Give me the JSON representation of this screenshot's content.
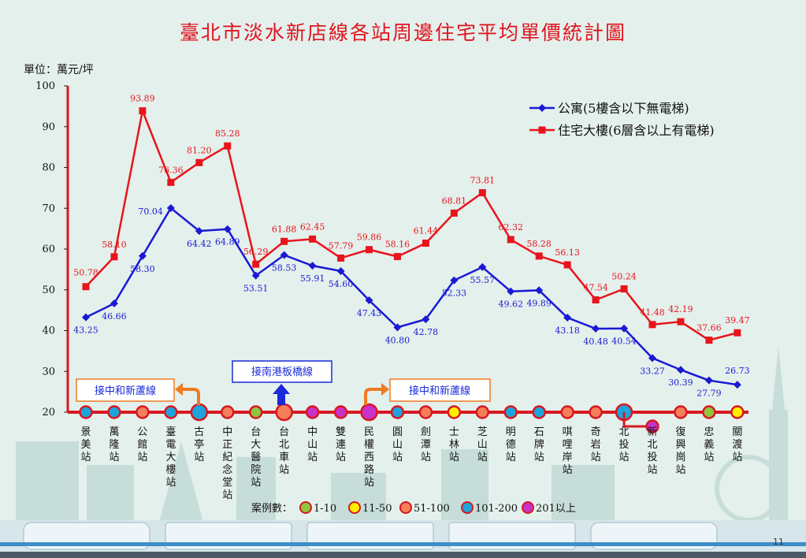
{
  "title": "臺北市淡水新店線各站周邊住宅平均單價統計圖",
  "unit_label": "單位：萬元/坪",
  "page_number": "11",
  "colors": {
    "apartment": "#1a1ad4",
    "building": "#e8141c",
    "axis": "#d81820",
    "annotation_orange": "#f07a20",
    "annotation_blue": "#1a2ad8",
    "bin_1_10": "#8dc63f",
    "bin_11_50": "#ffee00",
    "bin_51_100": "#f47f5a",
    "bin_101_200": "#1ea4dc",
    "bin_201_plus": "#c832c8"
  },
  "annotations": {
    "left_connect": "接中和新蘆線",
    "south_connect": "接南港板橋線",
    "right_connect": "接中和新蘆線"
  },
  "legend_case_count": {
    "label": "案例數：",
    "items": [
      {
        "key": "bin_1_10",
        "text": "1-10"
      },
      {
        "key": "bin_11_50",
        "text": "11-50"
      },
      {
        "key": "bin_51_100",
        "text": "51-100"
      },
      {
        "key": "bin_101_200",
        "text": "101-200"
      },
      {
        "key": "bin_201_plus",
        "text": "201以上"
      }
    ]
  },
  "stations": [
    {
      "name": "景美站",
      "dot": "bin_101_200"
    },
    {
      "name": "萬隆站",
      "dot": "bin_101_200"
    },
    {
      "name": "公館站",
      "dot": "bin_51_100"
    },
    {
      "name": "臺電大樓站",
      "dot": "bin_101_200"
    },
    {
      "name": "古亭站",
      "dot": "bin_101_200"
    },
    {
      "name": "中正紀念堂站",
      "dot": "bin_51_100"
    },
    {
      "name": "台大醫院站",
      "dot": "bin_1_10"
    },
    {
      "name": "台北車站",
      "dot": "bin_51_100"
    },
    {
      "name": "中山站",
      "dot": "bin_201_plus"
    },
    {
      "name": "雙連站",
      "dot": "bin_201_plus"
    },
    {
      "name": "民權西路站",
      "dot": "bin_201_plus"
    },
    {
      "name": "圓山站",
      "dot": "bin_101_200"
    },
    {
      "name": "劍潭站",
      "dot": "bin_51_100"
    },
    {
      "name": "士林站",
      "dot": "bin_11_50"
    },
    {
      "name": "芝山站",
      "dot": "bin_51_100"
    },
    {
      "name": "明德站",
      "dot": "bin_101_200"
    },
    {
      "name": "石牌站",
      "dot": "bin_101_200"
    },
    {
      "name": "唭哩岸站",
      "dot": "bin_51_100"
    },
    {
      "name": "奇岩站",
      "dot": "bin_51_100"
    },
    {
      "name": "北投站",
      "dot": "bin_101_200"
    },
    {
      "name": "新北投站",
      "dot": "bin_201_plus"
    },
    {
      "name": "復興崗站",
      "dot": "bin_51_100"
    },
    {
      "name": "忠義站",
      "dot": "bin_1_10"
    },
    {
      "name": "關渡站",
      "dot": "bin_11_50"
    }
  ],
  "chart_data": {
    "type": "line",
    "categories": [
      "景美站",
      "萬隆站",
      "公館站",
      "臺電大樓站",
      "古亭站",
      "中正紀念堂站",
      "台大醫院站",
      "台北車站",
      "中山站",
      "雙連站",
      "民權西路站",
      "圓山站",
      "劍潭站",
      "士林站",
      "芝山站",
      "明德站",
      "石牌站",
      "唭哩岸站",
      "奇岩站",
      "北投站",
      "新北投站",
      "復興崗站",
      "忠義站",
      "關渡站"
    ],
    "ylim": [
      20,
      100
    ],
    "yticks": [
      20,
      30,
      40,
      50,
      60,
      70,
      80,
      90,
      100
    ],
    "legend_position": "top-right",
    "series": [
      {
        "name": "公寓(5樓含以下無電梯)",
        "color": "#1a1ad4",
        "marker": "diamond",
        "values": [
          43.25,
          46.66,
          58.3,
          70.04,
          64.42,
          64.89,
          53.51,
          58.53,
          55.91,
          54.6,
          47.43,
          40.8,
          42.78,
          52.33,
          55.57,
          49.62,
          49.89,
          43.18,
          40.48,
          40.54,
          33.27,
          30.39,
          27.79,
          26.73
        ],
        "labels": [
          "43.25",
          "46.66",
          "58.30",
          "70.04",
          "64.42",
          "64.89",
          "53.51",
          "58.53",
          "55.91",
          "54.60",
          "47.43",
          "40.80",
          "42.78",
          "52.33",
          "55.57",
          "49.62",
          "49.89",
          "43.18",
          "40.48",
          "40.54",
          "33.27",
          "30.39",
          "27.79",
          "26.73"
        ]
      },
      {
        "name": "住宅大樓(6層含以上有電梯)",
        "color": "#e8141c",
        "marker": "square",
        "values": [
          50.78,
          58.1,
          93.89,
          76.36,
          81.2,
          85.28,
          56.29,
          61.88,
          62.45,
          57.79,
          59.86,
          58.16,
          61.44,
          68.81,
          73.81,
          62.32,
          58.28,
          56.13,
          47.54,
          50.24,
          41.48,
          42.19,
          37.66,
          39.47
        ],
        "labels": [
          "50.78",
          "58.10",
          "93.89",
          "76.36",
          "81.20",
          "85.28",
          "56.29",
          "61.88",
          "62.45",
          "57.79",
          "59.86",
          "58.16",
          "61.44",
          "68.81",
          "73.81",
          "62.32",
          "58.28",
          "56.13",
          "47.54",
          "50.24",
          "41.48",
          "42.19",
          "37.66",
          "39.47"
        ]
      }
    ]
  }
}
